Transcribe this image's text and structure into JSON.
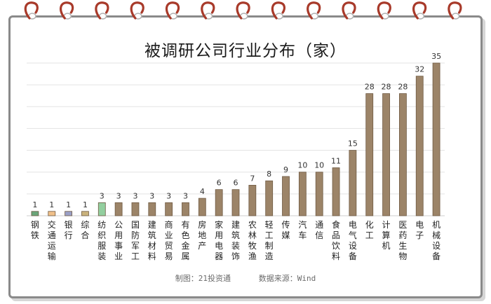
{
  "chart_data": {
    "type": "bar",
    "title": "被调研公司行业分布（家）",
    "categories": [
      "钢铁",
      "交通运输",
      "银行",
      "综合",
      "纺织服装",
      "公用事业",
      "国防军工",
      "建筑材料",
      "商业贸易",
      "有色金属",
      "房地产",
      "家用电器",
      "建筑装饰",
      "农林牧渔",
      "轻工制造",
      "传媒",
      "汽车",
      "通信",
      "食品饮料",
      "电气设备",
      "化工",
      "计算机",
      "医药生物",
      "电子",
      "机械设备"
    ],
    "values": [
      1,
      1,
      1,
      1,
      3,
      3,
      3,
      3,
      3,
      3,
      4,
      6,
      6,
      7,
      8,
      9,
      10,
      10,
      11,
      15,
      28,
      28,
      28,
      32,
      35
    ],
    "bar_colors": [
      "#6aa57a",
      "#f0c08a",
      "#9a9fc6",
      "#c9b27c",
      "#93cf9f",
      "#9c8468",
      "#9c8468",
      "#9c8468",
      "#9c8468",
      "#9c8468",
      "#9c8468",
      "#9c8468",
      "#9c8468",
      "#9c8468",
      "#9c8468",
      "#9c8468",
      "#9c8468",
      "#9c8468",
      "#9c8468",
      "#9c8468",
      "#9c8468",
      "#9c8468",
      "#9c8468",
      "#9c8468",
      "#9c8468"
    ],
    "ylim": [
      0,
      35
    ],
    "grid": true,
    "xlabel": "",
    "ylabel": ""
  },
  "footer": {
    "maker": "制图：21投资通",
    "source": "数据来源：Wind"
  },
  "colors": {
    "bar_edge": "#6f5a43",
    "grid": "#e3e3e3",
    "spiral": "#a83a2a"
  }
}
